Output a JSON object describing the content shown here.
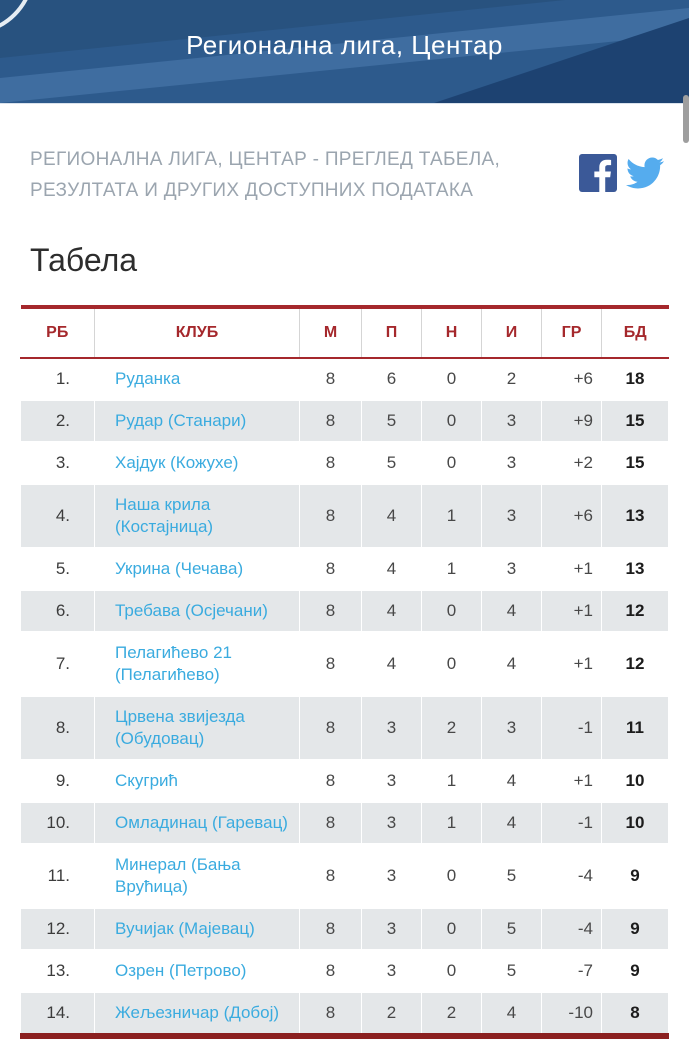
{
  "banner": {
    "title": "Регионална лига, Центар"
  },
  "intro": {
    "subtitle_line1": "РЕГИОНАЛНА ЛИГА, ЦЕНТАР - ПРЕГЛЕД ТАБЕЛА,",
    "subtitle_line2": "РЕЗУЛТАТА И ДРУГИХ ДОСТУПНИХ ПОДАТАКА",
    "social": {
      "facebook": "facebook-share",
      "twitter": "twitter-share"
    }
  },
  "section": {
    "title": "Табела"
  },
  "table": {
    "columns": [
      "РБ",
      "КЛУБ",
      "М",
      "П",
      "Н",
      "И",
      "ГР",
      "БД"
    ],
    "rows": [
      {
        "rank": "1.",
        "club": "Руданка",
        "m": "8",
        "p": "6",
        "n": "0",
        "i": "2",
        "gr": "+6",
        "bd": "18"
      },
      {
        "rank": "2.",
        "club": "Рудар (Станари)",
        "m": "8",
        "p": "5",
        "n": "0",
        "i": "3",
        "gr": "+9",
        "bd": "15"
      },
      {
        "rank": "3.",
        "club": "Хајдук (Кожухе)",
        "m": "8",
        "p": "5",
        "n": "0",
        "i": "3",
        "gr": "+2",
        "bd": "15"
      },
      {
        "rank": "4.",
        "club": "Наша крила (Костајница)",
        "m": "8",
        "p": "4",
        "n": "1",
        "i": "3",
        "gr": "+6",
        "bd": "13"
      },
      {
        "rank": "5.",
        "club": "Укрина (Чечава)",
        "m": "8",
        "p": "4",
        "n": "1",
        "i": "3",
        "gr": "+1",
        "bd": "13"
      },
      {
        "rank": "6.",
        "club": "Требава (Осјечани)",
        "m": "8",
        "p": "4",
        "n": "0",
        "i": "4",
        "gr": "+1",
        "bd": "12"
      },
      {
        "rank": "7.",
        "club": "Пелагићево 21 (Пелагићево)",
        "m": "8",
        "p": "4",
        "n": "0",
        "i": "4",
        "gr": "+1",
        "bd": "12"
      },
      {
        "rank": "8.",
        "club": "Црвена звијезда (Обудовац)",
        "m": "8",
        "p": "3",
        "n": "2",
        "i": "3",
        "gr": "-1",
        "bd": "11"
      },
      {
        "rank": "9.",
        "club": "Скугрић",
        "m": "8",
        "p": "3",
        "n": "1",
        "i": "4",
        "gr": "+1",
        "bd": "10"
      },
      {
        "rank": "10.",
        "club": "Омладинац (Гаревац)",
        "m": "8",
        "p": "3",
        "n": "1",
        "i": "4",
        "gr": "-1",
        "bd": "10"
      },
      {
        "rank": "11.",
        "club": "Минерал (Бања Врућица)",
        "m": "8",
        "p": "3",
        "n": "0",
        "i": "5",
        "gr": "-4",
        "bd": "9"
      },
      {
        "rank": "12.",
        "club": "Вучијак (Мајевац)",
        "m": "8",
        "p": "3",
        "n": "0",
        "i": "5",
        "gr": "-4",
        "bd": "9"
      },
      {
        "rank": "13.",
        "club": "Озрен (Петрово)",
        "m": "8",
        "p": "3",
        "n": "0",
        "i": "5",
        "gr": "-7",
        "bd": "9"
      },
      {
        "rank": "14.",
        "club": "Жељезничар (Добој)",
        "m": "8",
        "p": "2",
        "n": "2",
        "i": "4",
        "gr": "-10",
        "bd": "8"
      }
    ]
  },
  "colors": {
    "banner_blue": "#2d5a8c",
    "banner_dark": "#1d4271",
    "banner_light_stripe": "#3f6da0",
    "accent_red": "#a5282c",
    "bottom_border_red": "#8b2020",
    "link_blue": "#3aabdf",
    "row_stripe_gray": "#e4e7e9",
    "subtitle_gray": "#9ba5af",
    "facebook_blue": "#3b5998",
    "twitter_blue": "#55acee"
  }
}
